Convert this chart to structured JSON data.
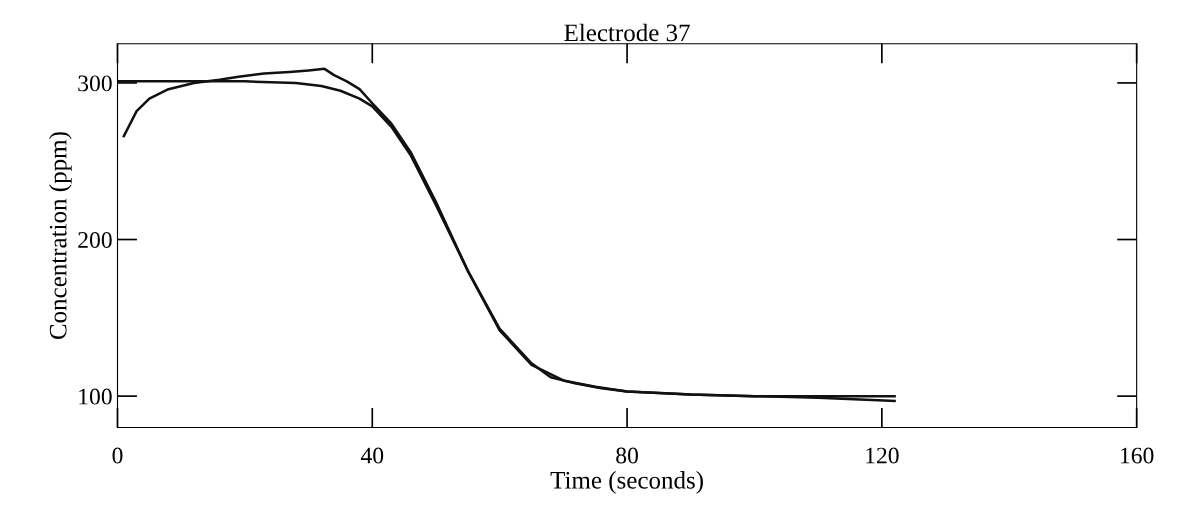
{
  "chart_data": {
    "type": "line",
    "title": "Electrode 37",
    "xlabel": "Time (seconds)",
    "ylabel": "Concentration (ppm)",
    "xlim": [
      0,
      160
    ],
    "xticks": [
      0,
      40,
      80,
      120,
      160
    ],
    "ylim": [
      80,
      325
    ],
    "yticks": [
      100,
      200,
      300
    ],
    "grid": false,
    "legend": false,
    "series": [
      {
        "color": "#111111",
        "x": [
          1,
          3,
          5,
          8,
          12,
          16,
          19,
          23,
          27,
          30,
          32.5,
          34,
          36,
          38,
          40,
          43,
          46,
          50,
          55,
          60,
          65,
          68,
          72,
          76,
          80,
          90,
          100,
          110,
          122
        ],
        "values": [
          266,
          282,
          290,
          296,
          300,
          302,
          304,
          306,
          307,
          308,
          309,
          305,
          301,
          296,
          287,
          274,
          256,
          224,
          180,
          143,
          121,
          112,
          108,
          105,
          103,
          101,
          100,
          99,
          97
        ]
      },
      {
        "color": "#111111",
        "x": [
          0,
          10,
          20,
          28,
          32,
          35,
          38,
          40,
          43,
          46,
          50,
          55,
          60,
          65,
          70,
          75,
          80,
          90,
          100,
          110,
          122
        ],
        "values": [
          301,
          301,
          301,
          300,
          298,
          295,
          290,
          285,
          272,
          254,
          222,
          180,
          142,
          120,
          110,
          106,
          103,
          101,
          100,
          100,
          100
        ]
      }
    ]
  }
}
